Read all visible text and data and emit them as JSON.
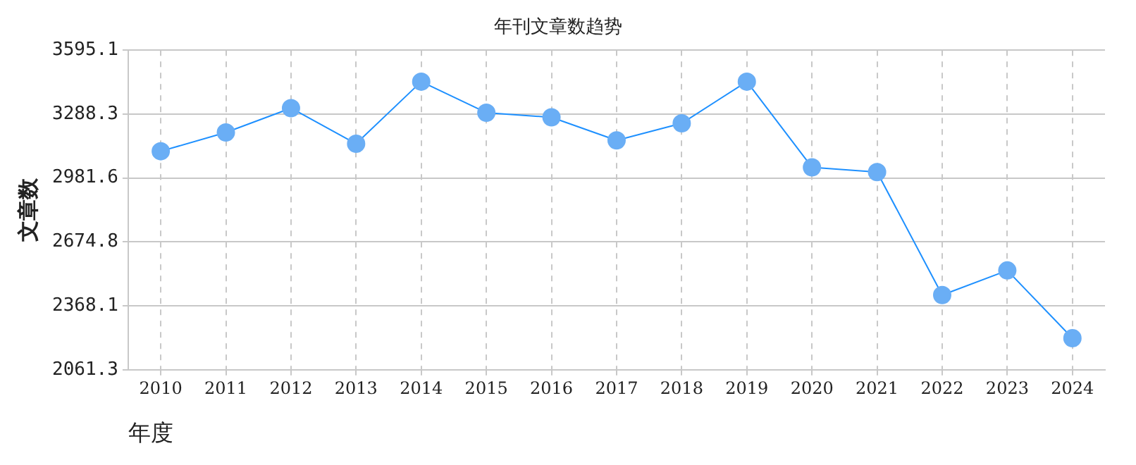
{
  "chart_data": {
    "type": "line",
    "title": "年刊文章数趋势",
    "xlabel": "年度",
    "ylabel": "文章数",
    "categories": [
      "2010",
      "2011",
      "2012",
      "2013",
      "2014",
      "2015",
      "2016",
      "2017",
      "2018",
      "2019",
      "2020",
      "2021",
      "2022",
      "2023",
      "2024"
    ],
    "series": [
      {
        "color": "#1e90ff",
        "values": [
          3110,
          3200,
          3317,
          3146,
          3444,
          3295,
          3273,
          3162,
          3244,
          3444,
          3033,
          3010,
          2420,
          2538,
          2213
        ]
      }
    ],
    "ylim": [
      2061.3,
      3595.1
    ],
    "yticks": [
      2061.3,
      2368.1,
      2674.8,
      2981.6,
      3288.3,
      3595.1
    ],
    "grid": true,
    "legend": false,
    "marker": "circle",
    "line_style": "solid"
  }
}
